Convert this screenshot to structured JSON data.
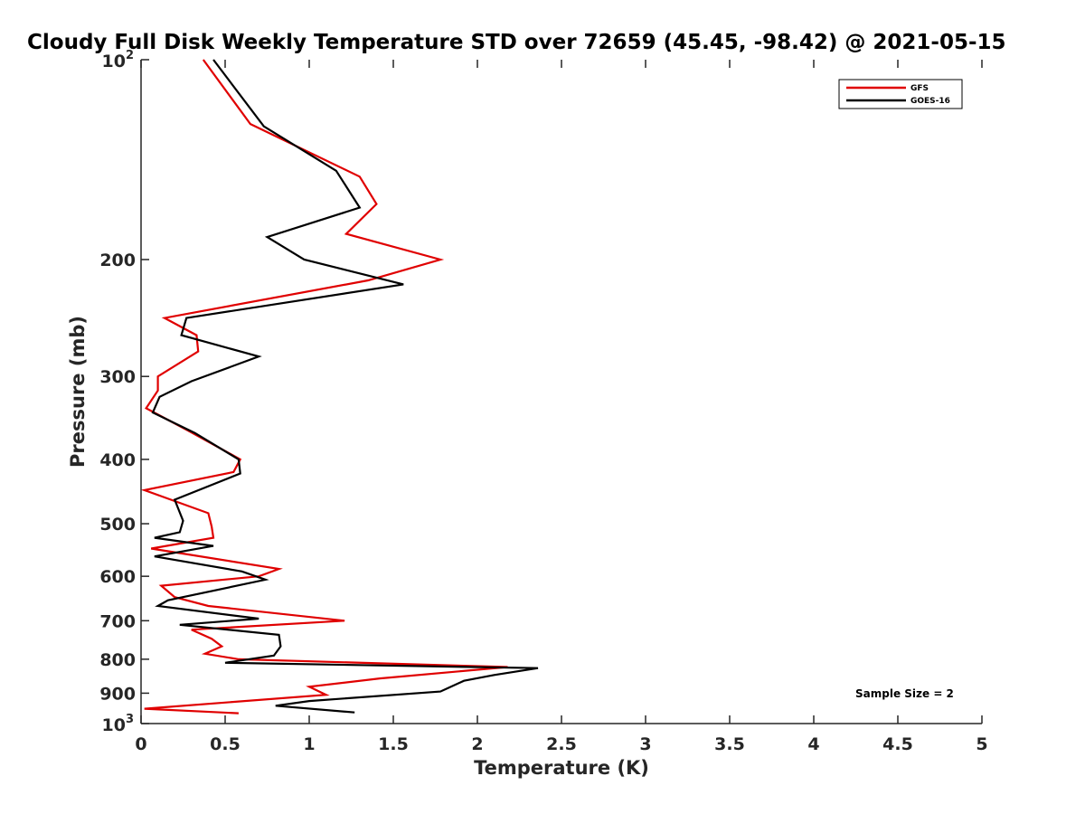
{
  "chart_data": {
    "type": "line",
    "title": "Cloudy Full Disk Weekly Temperature STD over 72659 (45.45, -98.42) @ 2021-05-15",
    "xlabel": "Temperature (K)",
    "ylabel": "Pressure (mb)",
    "xlim": [
      0,
      5
    ],
    "ylim": [
      1000,
      100
    ],
    "yscale": "log",
    "y_reversed": true,
    "x_ticks": [
      "0",
      "0.5",
      "1",
      "1.5",
      "2",
      "2.5",
      "3",
      "3.5",
      "4",
      "4.5",
      "5"
    ],
    "y_ticks": [
      {
        "value": 100,
        "base": "10",
        "exp": "2",
        "label": ""
      },
      {
        "value": 200,
        "label": "200"
      },
      {
        "value": 300,
        "label": "300"
      },
      {
        "value": 400,
        "label": "400"
      },
      {
        "value": 500,
        "label": "500"
      },
      {
        "value": 600,
        "label": "600"
      },
      {
        "value": 700,
        "label": "700"
      },
      {
        "value": 800,
        "label": "800"
      },
      {
        "value": 900,
        "label": "900"
      },
      {
        "value": 1000,
        "base": "10",
        "exp": "3",
        "label": ""
      }
    ],
    "grid": false,
    "legend_position": "top-right",
    "annotation": "Sample Size = 2",
    "series": [
      {
        "name": "GFS",
        "color": "#e00000",
        "points": [
          [
            0.37,
            100
          ],
          [
            0.65,
            125
          ],
          [
            1.3,
            150
          ],
          [
            1.4,
            165
          ],
          [
            1.22,
            183
          ],
          [
            1.78,
            200
          ],
          [
            1.35,
            215
          ],
          [
            0.14,
            245
          ],
          [
            0.33,
            260
          ],
          [
            0.34,
            275
          ],
          [
            0.1,
            300
          ],
          [
            0.1,
            315
          ],
          [
            0.03,
            335
          ],
          [
            0.28,
            362
          ],
          [
            0.59,
            400
          ],
          [
            0.55,
            418
          ],
          [
            0.02,
            445
          ],
          [
            0.4,
            482
          ],
          [
            0.42,
            505
          ],
          [
            0.43,
            525
          ],
          [
            0.06,
            545
          ],
          [
            0.82,
            585
          ],
          [
            0.7,
            600
          ],
          [
            0.12,
            620
          ],
          [
            0.2,
            645
          ],
          [
            0.4,
            665
          ],
          [
            1.21,
            700
          ],
          [
            0.3,
            722
          ],
          [
            0.42,
            745
          ],
          [
            0.48,
            765
          ],
          [
            0.38,
            785
          ],
          [
            0.58,
            800
          ],
          [
            2.18,
            822
          ],
          [
            1.42,
            855
          ],
          [
            1.0,
            880
          ],
          [
            1.1,
            905
          ],
          [
            0.02,
            950
          ],
          [
            0.58,
            965
          ]
        ]
      },
      {
        "name": "GOES-16",
        "color": "#000000",
        "points": [
          [
            0.43,
            100
          ],
          [
            0.73,
            126
          ],
          [
            1.16,
            147
          ],
          [
            1.3,
            167
          ],
          [
            0.75,
            185
          ],
          [
            0.97,
            200
          ],
          [
            1.56,
            218
          ],
          [
            0.27,
            245
          ],
          [
            0.24,
            260
          ],
          [
            0.7,
            280
          ],
          [
            0.3,
            305
          ],
          [
            0.11,
            322
          ],
          [
            0.07,
            340
          ],
          [
            0.32,
            365
          ],
          [
            0.58,
            400
          ],
          [
            0.59,
            420
          ],
          [
            0.2,
            460
          ],
          [
            0.25,
            495
          ],
          [
            0.23,
            515
          ],
          [
            0.08,
            525
          ],
          [
            0.43,
            540
          ],
          [
            0.08,
            560
          ],
          [
            0.6,
            590
          ],
          [
            0.74,
            607
          ],
          [
            0.16,
            652
          ],
          [
            0.1,
            665
          ],
          [
            0.7,
            695
          ],
          [
            0.23,
            710
          ],
          [
            0.82,
            735
          ],
          [
            0.83,
            765
          ],
          [
            0.79,
            790
          ],
          [
            0.5,
            810
          ],
          [
            2.36,
            825
          ],
          [
            2.1,
            845
          ],
          [
            1.92,
            862
          ],
          [
            1.78,
            895
          ],
          [
            1.0,
            925
          ],
          [
            0.8,
            940
          ],
          [
            1.27,
            962
          ]
        ]
      }
    ]
  }
}
